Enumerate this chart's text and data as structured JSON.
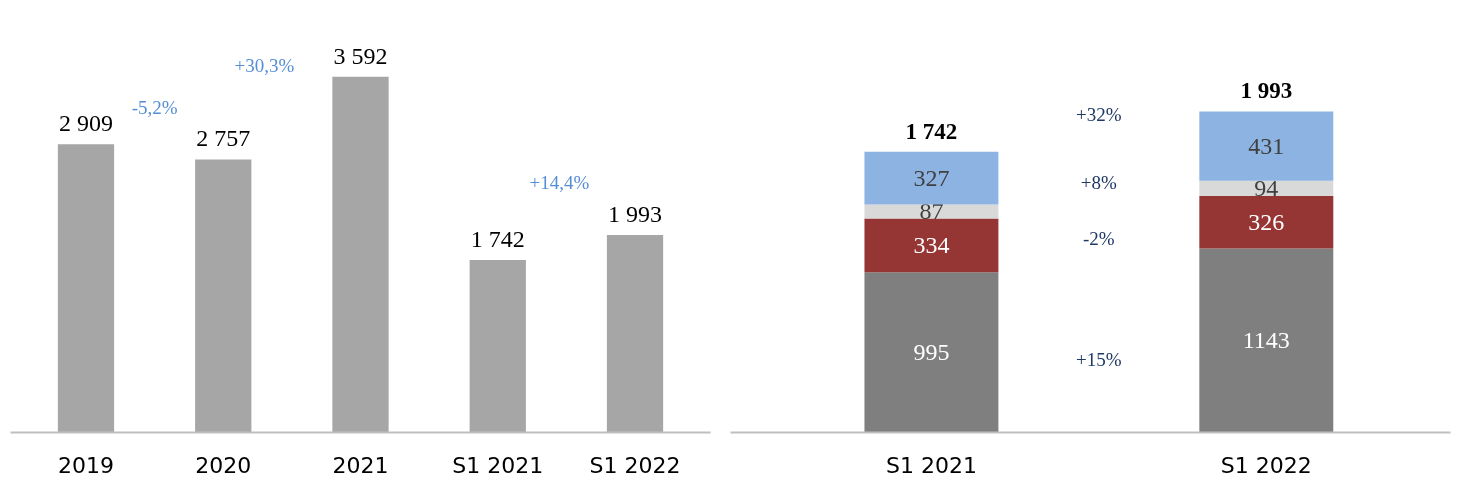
{
  "chart_data": [
    {
      "type": "bar",
      "categories": [
        "2019",
        "2020",
        "2021",
        "S1 2021",
        "S1 2022"
      ],
      "values": [
        2909,
        2757,
        3592,
        1742,
        1993
      ],
      "color": "#a6a6a6",
      "value_labels": [
        "2 909",
        "2 757",
        "3 592",
        "1 742",
        "1 993"
      ],
      "annotations": [
        "-5,2%",
        "+30,3%",
        "+14,4%"
      ]
    },
    {
      "type": "bar",
      "stacked": true,
      "categories": [
        "S1 2021",
        "S1 2022"
      ],
      "series": [
        {
          "color": "#7f7f7f",
          "values": [
            995,
            1143
          ]
        },
        {
          "color": "#963634",
          "values": [
            334,
            326
          ]
        },
        {
          "color": "#d9d9d9",
          "values": [
            87,
            94
          ]
        },
        {
          "color": "#8db3e2",
          "values": [
            327,
            431
          ]
        }
      ],
      "data_labels": true,
      "totals": [
        "1 742",
        "1 993"
      ],
      "annotations": [
        "+32%",
        "+8%",
        "-2%",
        "+15%"
      ]
    }
  ]
}
